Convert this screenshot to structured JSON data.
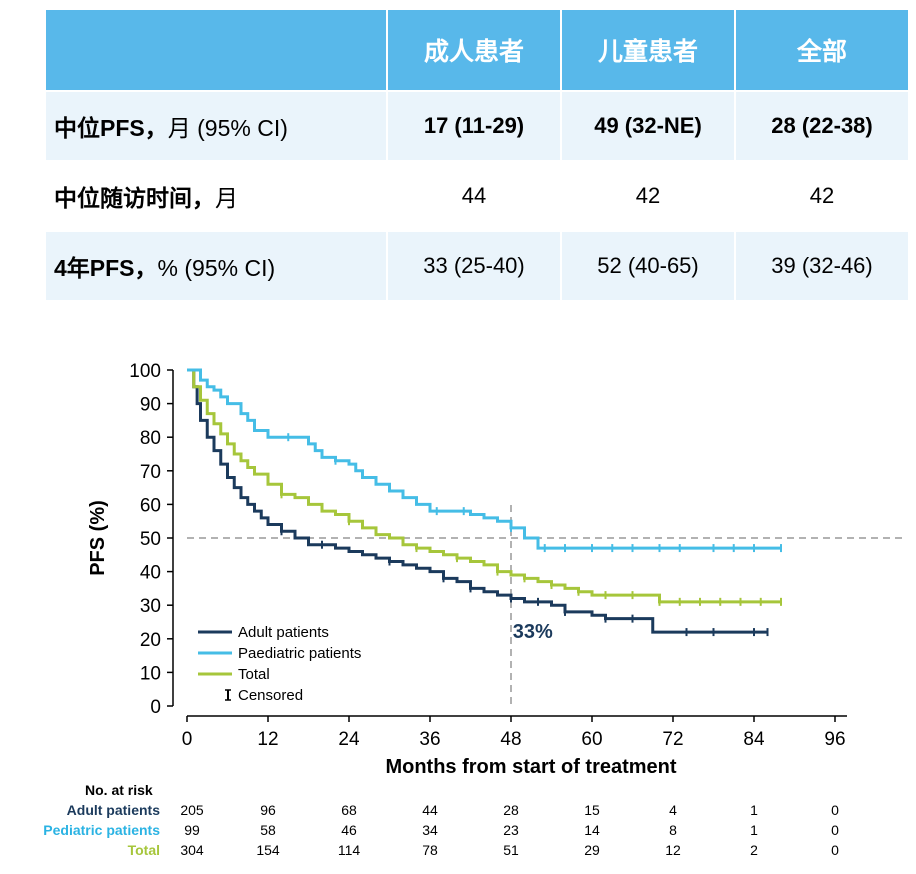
{
  "table": {
    "headers": [
      "",
      "成人患者",
      "儿童患者",
      "全部"
    ],
    "rows": [
      {
        "label_bold": "中位PFS，",
        "label_normal": "月 (95% CI)",
        "values": [
          "17 (11-29)",
          "49 (32-NE)",
          "28 (22-38)"
        ]
      },
      {
        "label_bold": "中位随访时间，",
        "label_normal": "月",
        "values": [
          "44",
          "42",
          "42"
        ]
      },
      {
        "label_bold": "4年PFS，",
        "label_normal": "% (95% CI)",
        "values": [
          "33 (25-40)",
          "52 (40-65)",
          "39 (32-46)"
        ]
      }
    ]
  },
  "chart_data": {
    "type": "line",
    "xlabel": "Months from start of treatment",
    "ylabel": "PFS (%)",
    "xlim": [
      0,
      96
    ],
    "ylim": [
      0,
      100
    ],
    "xticks": [
      0,
      12,
      24,
      36,
      48,
      60,
      72,
      84,
      96
    ],
    "yticks": [
      0,
      10,
      20,
      30,
      40,
      50,
      60,
      70,
      80,
      90,
      100
    ],
    "reference_lines": {
      "horizontal_y": 50,
      "vertical_x": 48
    },
    "annotation": {
      "text": "33%",
      "x": 49,
      "y": 22
    },
    "legend_position": "bottom-left",
    "series": [
      {
        "name": "Adult patients",
        "color": "#1b3a5c",
        "x": [
          0,
          1,
          1.5,
          2,
          3,
          4,
          5,
          6,
          7,
          8,
          9,
          10,
          11,
          12,
          14,
          16,
          18,
          20,
          22,
          24,
          26,
          28,
          30,
          32,
          34,
          36,
          38,
          40,
          42,
          44,
          46,
          48,
          50,
          52,
          54,
          56,
          58,
          60,
          62,
          64,
          66,
          68,
          69,
          72,
          76,
          80,
          84,
          86
        ],
        "y": [
          100,
          95,
          90,
          85,
          80,
          76,
          72,
          68,
          65,
          62,
          60,
          58,
          56,
          54,
          52,
          50,
          48,
          48,
          47,
          46,
          45,
          44,
          43,
          42,
          41,
          40,
          38,
          37,
          35,
          34,
          33,
          32,
          31,
          31,
          30,
          28,
          28,
          27,
          26,
          26,
          26,
          26,
          22,
          22,
          22,
          22,
          22,
          22
        ],
        "censored_x": [
          14,
          20,
          30,
          38,
          42,
          48,
          52,
          56,
          62,
          66,
          74,
          78,
          84,
          86
        ]
      },
      {
        "name": "Paediatric patients",
        "color": "#45bde6",
        "x": [
          0,
          2,
          3,
          4,
          5,
          6,
          8,
          9,
          10,
          12,
          14,
          16,
          18,
          19,
          20,
          22,
          24,
          25,
          26,
          28,
          30,
          32,
          34,
          36,
          38,
          40,
          42,
          44,
          46,
          48,
          50,
          52,
          54,
          60,
          70,
          80,
          88
        ],
        "y": [
          100,
          97,
          95,
          94,
          92,
          90,
          87,
          85,
          82,
          80,
          80,
          80,
          78,
          76,
          74,
          73,
          72,
          70,
          68,
          66,
          64,
          62,
          60,
          58,
          58,
          58,
          57,
          56,
          55,
          53,
          50,
          47,
          47,
          47,
          47,
          47,
          47
        ],
        "censored_x": [
          15,
          22,
          37,
          41,
          48,
          53,
          56,
          60,
          63,
          66,
          70,
          73,
          78,
          81,
          84,
          88
        ]
      },
      {
        "name": "Total",
        "color": "#a6c63b",
        "x": [
          0,
          1,
          2,
          3,
          4,
          5,
          6,
          7,
          8,
          9,
          10,
          12,
          14,
          16,
          18,
          20,
          22,
          24,
          26,
          28,
          30,
          32,
          34,
          36,
          38,
          40,
          42,
          44,
          46,
          48,
          50,
          52,
          54,
          56,
          58,
          60,
          64,
          68,
          70,
          76,
          82,
          88
        ],
        "y": [
          100,
          95,
          91,
          87,
          84,
          81,
          78,
          75,
          73,
          71,
          69,
          66,
          63,
          62,
          60,
          58,
          57,
          55,
          53,
          51,
          50,
          48,
          47,
          46,
          45,
          44,
          43,
          42,
          40,
          39,
          38,
          37,
          36,
          35,
          34,
          33,
          33,
          33,
          31,
          31,
          31,
          31
        ],
        "censored_x": [
          14,
          24,
          34,
          40,
          46,
          50,
          54,
          58,
          62,
          66,
          70,
          73,
          76,
          79,
          82,
          85,
          88
        ]
      }
    ],
    "legend_entries": [
      "Adult patients",
      "Paediatric patients",
      "Total",
      "Censored"
    ]
  },
  "risk_table": {
    "title": "No. at risk",
    "months": [
      0,
      12,
      24,
      36,
      48,
      60,
      72,
      84,
      96
    ],
    "rows": [
      {
        "label": "Adult patients",
        "color": "#1b3a5c",
        "values": [
          "205",
          "96",
          "68",
          "44",
          "28",
          "15",
          "4",
          "1",
          "0"
        ]
      },
      {
        "label": "Pediatric patients",
        "color": "#2bb3e3",
        "values": [
          "99",
          "58",
          "46",
          "34",
          "23",
          "14",
          "8",
          "1",
          "0"
        ]
      },
      {
        "label": "Total",
        "color": "#a6c63b",
        "values": [
          "304",
          "154",
          "114",
          "78",
          "51",
          "29",
          "12",
          "2",
          "0"
        ]
      }
    ]
  }
}
